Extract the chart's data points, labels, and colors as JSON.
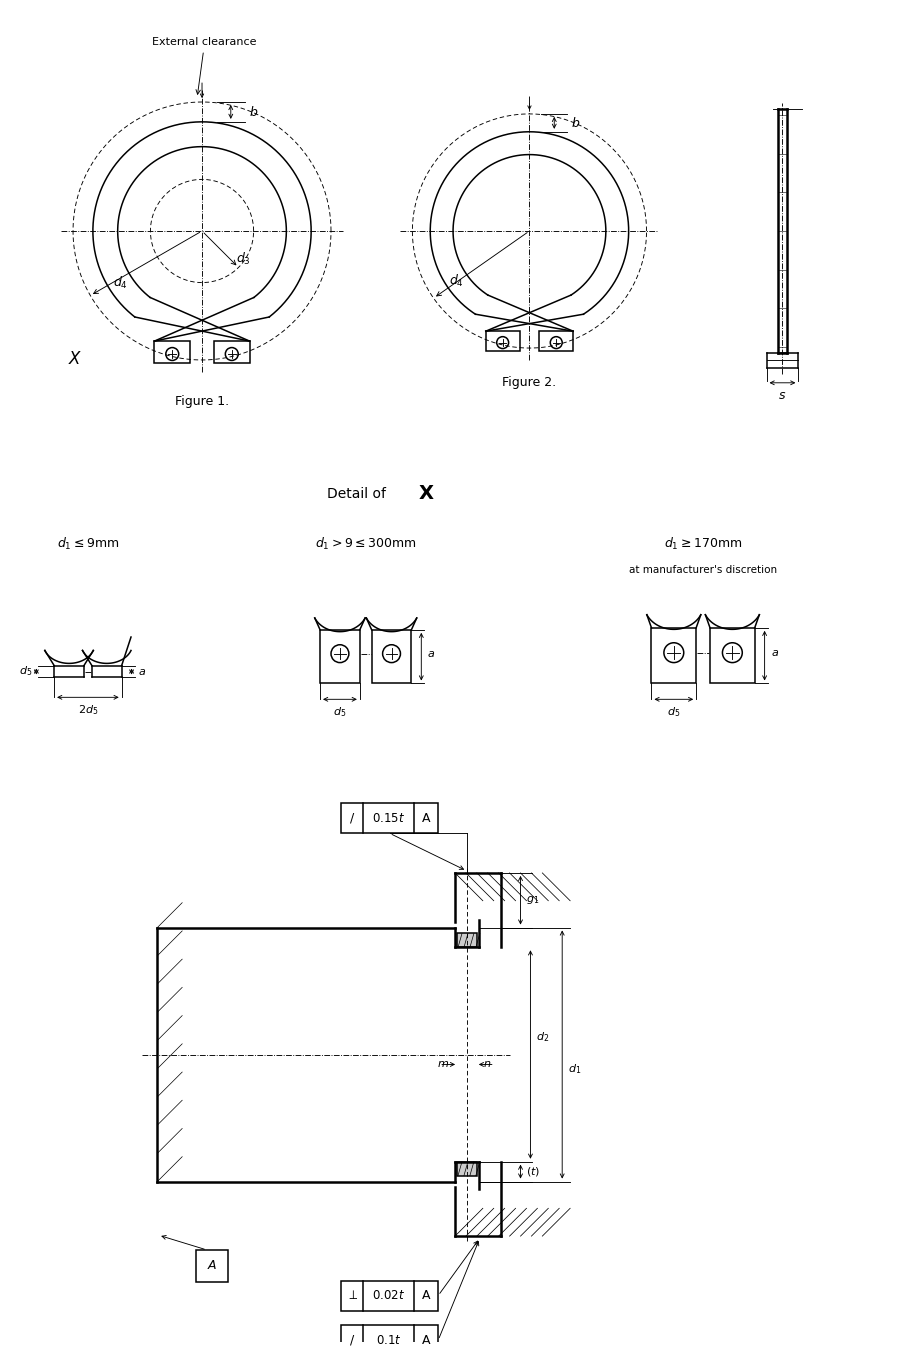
{
  "bg_color": "#ffffff",
  "line_color": "#000000",
  "fig1_label": "Figure 1.",
  "fig2_label": "Figure 2.",
  "detail_title": "Detail of",
  "detail_x_label": "X",
  "label_d1_le9": "$d_1 \\leq 9$mm",
  "label_d1_mid": "$d_1 > 9 \\leq 300$mm",
  "label_d1_ge170": "$d_1 \\geq 170$mm",
  "label_manuf": "at manufacturer's discretion",
  "ext_clearance": "External clearance",
  "tol1_sym": "/",
  "tol1_val": "0.15",
  "tol2_sym": "⊥",
  "tol2_val": "0.02",
  "tol3_sym": "/",
  "tol3_val": "0.1",
  "tol_ref": "A"
}
